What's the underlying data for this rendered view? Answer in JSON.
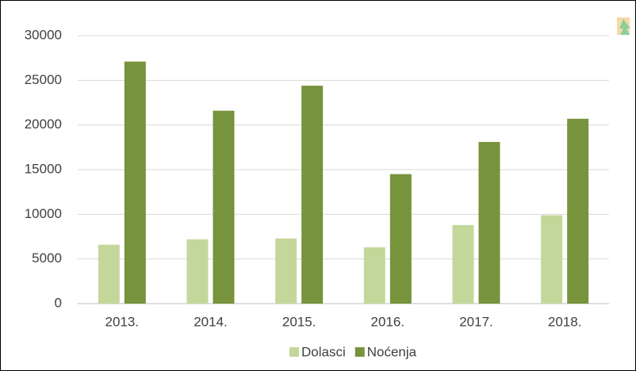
{
  "chart_data": {
    "type": "bar",
    "categories": [
      "2013.",
      "2014.",
      "2015.",
      "2016.",
      "2017.",
      "2018."
    ],
    "series": [
      {
        "name": "Dolasci",
        "color": "#c4d79b",
        "values": [
          6600,
          7200,
          7300,
          6300,
          8800,
          9900
        ]
      },
      {
        "name": "Noćenja",
        "color": "#77933c",
        "values": [
          27100,
          21600,
          24400,
          14500,
          18100,
          20700
        ]
      }
    ],
    "ylim": [
      0,
      30000
    ],
    "yticks": [
      0,
      5000,
      10000,
      15000,
      20000,
      25000,
      30000
    ],
    "grid": true,
    "legend": "bottom"
  }
}
